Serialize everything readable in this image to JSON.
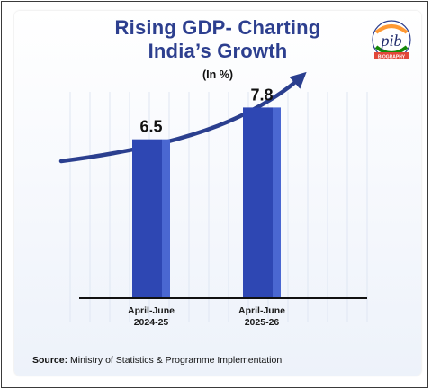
{
  "title_line1": "Rising GDP- Charting",
  "title_line2": "India’s Growth",
  "subtitle": "(In %)",
  "logo_text": "pib",
  "logo_banner": "BIOGRAPHY",
  "source_label": "Source:",
  "source_text": " Ministry of Statistics & Programme Implementation",
  "colors": {
    "title": "#2d3f8f",
    "bar_front": "#2e47b3",
    "bar_side": "#4a67d1",
    "arrow": "#2b3f8f",
    "baseline": "#111111"
  },
  "chart_data": {
    "type": "bar",
    "categories": [
      [
        "April-June",
        "2024-25"
      ],
      [
        "April-June",
        "2025-26"
      ]
    ],
    "values": [
      6.5,
      7.8
    ],
    "value_labels": [
      "6.5",
      "7.8"
    ],
    "title": "Rising GDP- Charting India’s Growth",
    "ylabel": "(In %)",
    "xlabel": "",
    "trend_arrow": "upward",
    "grid": true
  }
}
